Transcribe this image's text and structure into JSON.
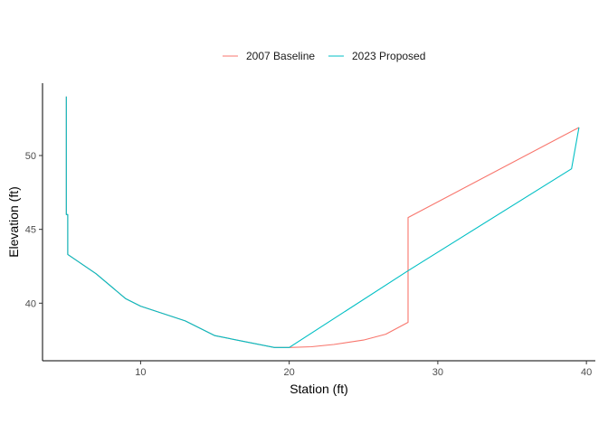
{
  "chart_data": {
    "type": "line",
    "title": "",
    "xlabel": "Station (ft)",
    "ylabel": "Elevation (ft)",
    "xlim": [
      3.4,
      40.6
    ],
    "ylim": [
      36.1,
      54.9
    ],
    "x_ticks": [
      10,
      20,
      30,
      40
    ],
    "y_ticks": [
      40,
      45,
      50
    ],
    "grid": false,
    "legend_position": "top",
    "series": [
      {
        "name": "2007 Baseline",
        "color": "#F8766D",
        "points": [
          [
            5.0,
            54.0
          ],
          [
            5.0,
            46.0
          ],
          [
            5.1,
            46.0
          ],
          [
            5.1,
            43.3
          ],
          [
            7.0,
            42.0
          ],
          [
            9.0,
            40.3
          ],
          [
            10.0,
            39.8
          ],
          [
            13.0,
            38.8
          ],
          [
            15.0,
            37.8
          ],
          [
            17.0,
            37.4
          ],
          [
            19.0,
            37.0
          ],
          [
            20.0,
            37.0
          ],
          [
            21.5,
            37.05
          ],
          [
            23.0,
            37.2
          ],
          [
            25.0,
            37.5
          ],
          [
            26.5,
            37.9
          ],
          [
            28.0,
            38.7
          ],
          [
            28.0,
            45.8
          ],
          [
            39.5,
            51.9
          ]
        ]
      },
      {
        "name": "2023 Proposed",
        "color": "#00BFC4",
        "points": [
          [
            5.0,
            54.0
          ],
          [
            5.0,
            46.0
          ],
          [
            5.1,
            46.0
          ],
          [
            5.1,
            43.3
          ],
          [
            7.0,
            42.0
          ],
          [
            9.0,
            40.3
          ],
          [
            10.0,
            39.8
          ],
          [
            13.0,
            38.8
          ],
          [
            15.0,
            37.8
          ],
          [
            17.0,
            37.4
          ],
          [
            19.0,
            37.0
          ],
          [
            20.0,
            37.0
          ],
          [
            28.0,
            42.2
          ],
          [
            39.0,
            49.1
          ],
          [
            39.5,
            51.9
          ]
        ]
      }
    ]
  }
}
